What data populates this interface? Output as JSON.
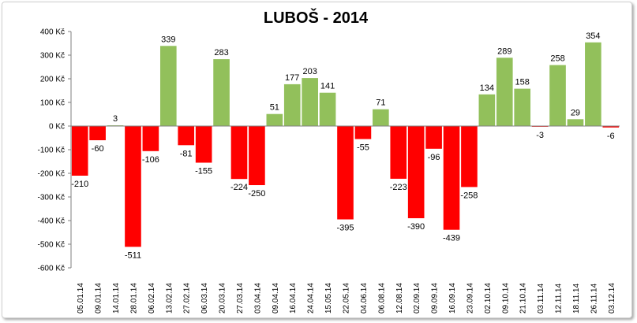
{
  "chart_data": {
    "type": "bar",
    "title": "LUBOŠ - 2014",
    "categories": [
      "05.01.14",
      "09.01.14",
      "14.01.14",
      "28.01.14",
      "06.02.14",
      "13.02.14",
      "27.02.14",
      "06.03.14",
      "20.03.14",
      "27.03.14",
      "03.04.14",
      "09.04.14",
      "16.04.14",
      "24.04.14",
      "15.05.14",
      "22.05.14",
      "04.06.14",
      "06.08.14",
      "12.08.14",
      "02.09.14",
      "09.09.14",
      "16.09.14",
      "23.09.14",
      "02.10.14",
      "09.10.14",
      "21.10.14",
      "03.11.14",
      "12.11.14",
      "18.11.14",
      "26.11.14",
      "03.12.14"
    ],
    "values": [
      -210,
      -60,
      3,
      -511,
      -106,
      339,
      -81,
      -155,
      283,
      -224,
      -250,
      51,
      177,
      203,
      141,
      -395,
      -55,
      71,
      -223,
      -390,
      -96,
      -439,
      -258,
      134,
      289,
      158,
      -3,
      258,
      29,
      354,
      -6
    ],
    "data_labels": [
      "-210",
      "-60",
      "3",
      "-511",
      "-106",
      "339",
      "-81",
      "-155",
      "283",
      "-224",
      "-250",
      "51",
      "177",
      "203",
      "141",
      "-395",
      "-55",
      "71",
      "-223",
      "-390",
      "-96",
      "-439",
      "-258",
      "134",
      "289",
      "158",
      "-3",
      "258",
      "29",
      "354",
      "-6"
    ],
    "y_tick_labels": [
      "400 Kč",
      "300 Kč",
      "200 Kč",
      "100 Kč",
      "0 Kč",
      "-100 Kč",
      "-200 Kč",
      "-300 Kč",
      "-400 Kč",
      "-500 Kč",
      "-600 Kč"
    ],
    "ylim": [
      -600,
      400
    ],
    "grid": false,
    "legend": "none",
    "colors": {
      "positive": "#92C05B",
      "negative": "#FF0000"
    }
  }
}
